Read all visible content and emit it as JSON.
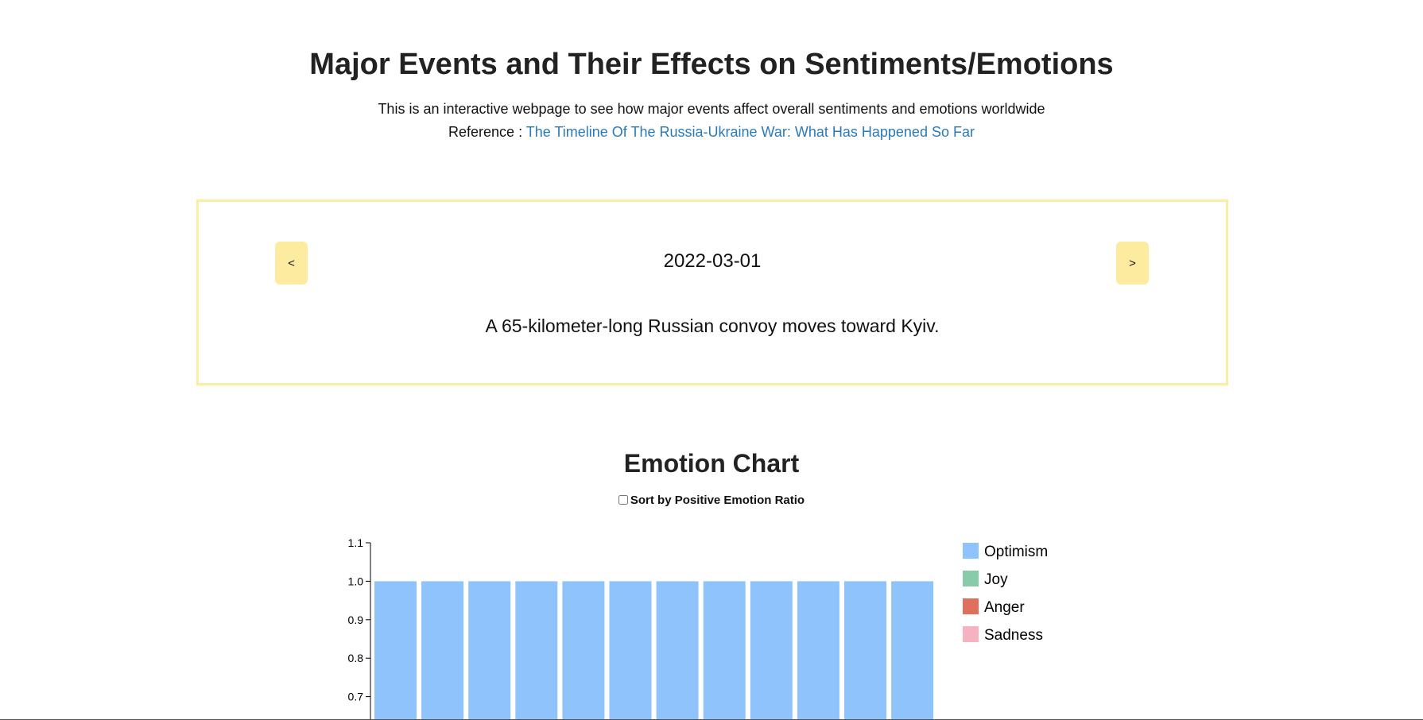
{
  "header": {
    "title": "Major Events and Their Effects on Sentiments/Emotions",
    "description": "This is an interactive webpage to see how major events affect overall sentiments and emotions worldwide",
    "reference_label": "Reference : ",
    "reference_link": "The Timeline Of The Russia-Ukraine War: What Has Happened So Far"
  },
  "event": {
    "prev_label": "<",
    "next_label": ">",
    "date": "2022-03-01",
    "text": "A 65-kilometer-long Russian convoy moves toward Kyiv."
  },
  "chart_section": {
    "title": "Emotion Chart",
    "sort_label": "Sort by Positive Emotion Ratio",
    "sort_checked": false
  },
  "colors": {
    "accent": "#fdec9f",
    "border": "#fbeea0",
    "link": "#2a7ab8"
  },
  "chart_data": {
    "type": "bar",
    "stacked": true,
    "title": "Emotion Chart",
    "xlabel": "",
    "ylabel": "",
    "ylim": [
      0,
      1.1
    ],
    "yticks": [
      "0.7",
      "0.8",
      "0.9",
      "1.0",
      "1.1"
    ],
    "legend_position": "right",
    "legend": [
      {
        "name": "Optimism",
        "color": "#8ec4fb"
      },
      {
        "name": "Joy",
        "color": "#88cbab"
      },
      {
        "name": "Anger",
        "color": "#e0705c"
      },
      {
        "name": "Sadness",
        "color": "#f5b3c0"
      }
    ],
    "series": [
      {
        "name": "Optimism",
        "values": [
          1.0,
          1.0,
          1.0,
          1.0,
          1.0,
          1.0,
          1.0,
          1.0,
          1.0,
          1.0,
          1.0,
          1.0
        ]
      }
    ]
  }
}
